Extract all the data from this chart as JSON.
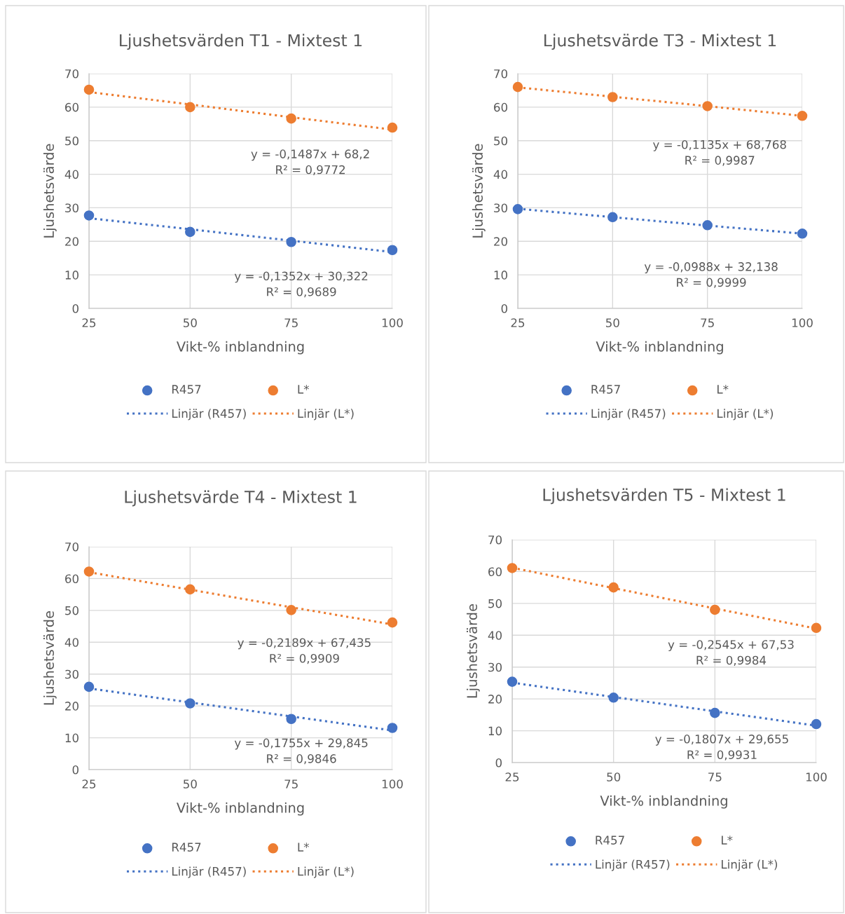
{
  "chart_data": [
    {
      "type": "scatter",
      "title": "Ljushetsvärden T1 - Mixtest 1",
      "xlabel": "Vikt-% inblandning",
      "ylabel": "Ljushetsvärde",
      "x": [
        25,
        50,
        75,
        100
      ],
      "xlim": [
        25,
        100
      ],
      "xticks": [
        25,
        50,
        75,
        100
      ],
      "ylim": [
        0,
        70
      ],
      "yticks": [
        0,
        10,
        20,
        30,
        40,
        50,
        60,
        70
      ],
      "grid": true,
      "legend": "bottom",
      "series": [
        {
          "name": "R457",
          "marker": "circle",
          "color": "#4472c4",
          "values": [
            27.7,
            22.8,
            19.8,
            17.4
          ]
        },
        {
          "name": "L*",
          "marker": "circle",
          "color": "#ed7d31",
          "values": [
            65.2,
            60.0,
            56.6,
            53.9
          ]
        },
        {
          "name": "Linjär (R457)",
          "type": "line",
          "line_style": "dotted",
          "color": "#4472c4",
          "values": [
            26.9,
            23.6,
            20.2,
            16.8
          ]
        },
        {
          "name": "Linjär (L*)",
          "type": "line",
          "line_style": "dotted",
          "color": "#ed7d31",
          "values": [
            64.5,
            60.8,
            57.0,
            53.3
          ]
        }
      ],
      "annotations": [
        "y = -0,1487x + 68,2\nR² = 0,9772",
        "y = -0,1352x + 30,322\nR² = 0,9689"
      ]
    },
    {
      "type": "scatter",
      "title": "Ljushetsvärde T3 - Mixtest 1",
      "xlabel": "Vikt-% inblandning",
      "ylabel": "Ljushetsvärde",
      "x": [
        25,
        50,
        75,
        100
      ],
      "xlim": [
        25,
        100
      ],
      "xticks": [
        25,
        50,
        75,
        100
      ],
      "ylim": [
        0,
        70
      ],
      "yticks": [
        0,
        10,
        20,
        30,
        40,
        50,
        60,
        70
      ],
      "grid": true,
      "legend": "bottom",
      "series": [
        {
          "name": "R457",
          "marker": "circle",
          "color": "#4472c4",
          "values": [
            29.6,
            27.2,
            24.8,
            22.3
          ]
        },
        {
          "name": "L*",
          "marker": "circle",
          "color": "#ed7d31",
          "values": [
            66.0,
            63.0,
            60.3,
            57.4
          ]
        },
        {
          "name": "Linjär (R457)",
          "type": "line",
          "line_style": "dotted",
          "color": "#4472c4",
          "values": [
            29.7,
            27.2,
            24.7,
            22.3
          ]
        },
        {
          "name": "Linjär (L*)",
          "type": "line",
          "line_style": "dotted",
          "color": "#ed7d31",
          "values": [
            65.9,
            63.1,
            60.3,
            57.4
          ]
        }
      ],
      "annotations": [
        "y = -0,1135x + 68,768\nR² = 0,9987",
        "y = -0,0988x + 32,138\nR² = 0,9999"
      ]
    },
    {
      "type": "scatter",
      "title": "Ljushetsvärde T4 - Mixtest 1",
      "xlabel": "Vikt-% inblandning",
      "ylabel": "Ljushetsvärde",
      "x": [
        25,
        50,
        75,
        100
      ],
      "xlim": [
        25,
        100
      ],
      "xticks": [
        25,
        50,
        75,
        100
      ],
      "ylim": [
        0,
        70
      ],
      "yticks": [
        0,
        10,
        20,
        30,
        40,
        50,
        60,
        70
      ],
      "grid": true,
      "legend": "bottom",
      "series": [
        {
          "name": "R457",
          "marker": "circle",
          "color": "#4472c4",
          "values": [
            26.0,
            20.8,
            15.9,
            13.1
          ]
        },
        {
          "name": "L*",
          "marker": "circle",
          "color": "#ed7d31",
          "values": [
            62.2,
            56.6,
            50.1,
            46.2
          ]
        },
        {
          "name": "Linjär (R457)",
          "type": "line",
          "line_style": "dotted",
          "color": "#4472c4",
          "values": [
            25.5,
            21.1,
            16.7,
            12.3
          ]
        },
        {
          "name": "Linjär (L*)",
          "type": "line",
          "line_style": "dotted",
          "color": "#ed7d31",
          "values": [
            62.0,
            56.5,
            51.0,
            45.6
          ]
        }
      ],
      "annotations": [
        "y = -0,2189x + 67,435\nR² = 0,9909",
        "y = -0,1755x + 29,845\nR² = 0,9846"
      ]
    },
    {
      "type": "scatter",
      "title": "Ljushetsvärden T5 - Mixtest 1",
      "xlabel": "Vikt-% inblandning",
      "ylabel": "Ljushetsvärde",
      "x": [
        25,
        50,
        75,
        100
      ],
      "xlim": [
        25,
        100
      ],
      "xticks": [
        25,
        50,
        75,
        100
      ],
      "ylim": [
        0,
        70
      ],
      "yticks": [
        0,
        10,
        20,
        30,
        40,
        50,
        60,
        70
      ],
      "grid": true,
      "legend": "bottom",
      "series": [
        {
          "name": "R457",
          "marker": "circle",
          "color": "#4472c4",
          "values": [
            25.4,
            20.4,
            15.6,
            12.1
          ]
        },
        {
          "name": "L*",
          "marker": "circle",
          "color": "#ed7d31",
          "values": [
            61.1,
            55.0,
            48.0,
            42.3
          ]
        },
        {
          "name": "Linjär (R457)",
          "type": "line",
          "line_style": "dotted",
          "color": "#4472c4",
          "values": [
            25.1,
            20.6,
            16.1,
            11.6
          ]
        },
        {
          "name": "Linjär (L*)",
          "type": "line",
          "line_style": "dotted",
          "color": "#ed7d31",
          "values": [
            61.2,
            54.8,
            48.4,
            42.1
          ]
        }
      ],
      "annotations": [
        "y = -0,2545x + 67,53\nR² = 0,9984",
        "y = -0,1807x + 29,655\nR² = 0,9931"
      ]
    }
  ]
}
